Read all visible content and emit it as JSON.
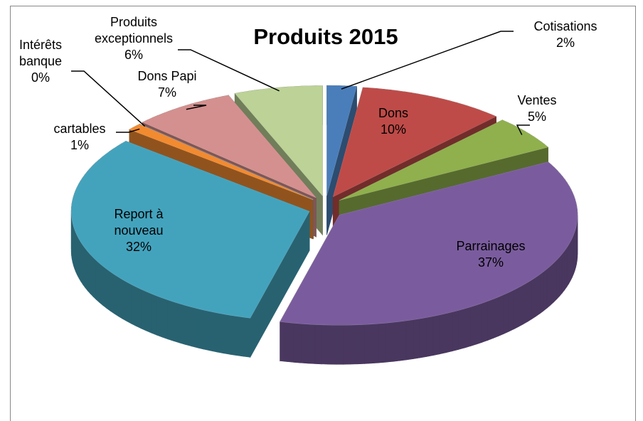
{
  "chart_data": {
    "type": "pie",
    "title": "Produits 2015",
    "categories": [
      "Cotisations",
      "Dons",
      "Ventes",
      "Parrainages",
      "Report à nouveau",
      "cartables",
      "Intérêts banque",
      "Dons Papi",
      "Produits exceptionnels"
    ],
    "values": [
      2,
      10,
      5,
      37,
      32,
      1,
      0,
      7,
      6
    ],
    "value_labels": [
      "2%",
      "10%",
      "5%",
      "37%",
      "32%",
      "1%",
      "0%",
      "7%",
      "6%"
    ],
    "colors": [
      "#4a7ebb",
      "#be4b48",
      "#8fb04c",
      "#7a5c9e",
      "#43a3bd",
      "#f28a30",
      "#8aa7d3",
      "#d4908e",
      "#bcd296"
    ]
  }
}
